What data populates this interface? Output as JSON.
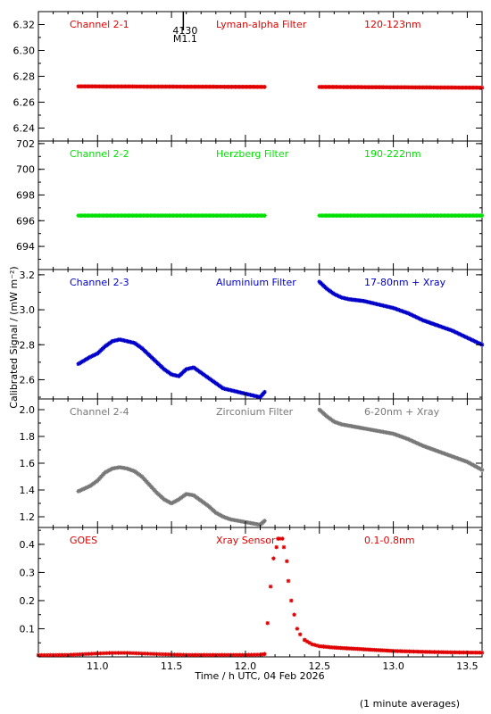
{
  "footer_note": "(1 minute averages)",
  "chart_data": {
    "type": "scatter",
    "xlabel": "Time / h UTC, 04 Feb 2026",
    "ylabel": "Calibrated Signal / (mW m⁻²)",
    "xlim": [
      10.6,
      13.6
    ],
    "x_ticks": [
      "11.0",
      "11.5",
      "12.0",
      "12.5",
      "13.0",
      "13.5"
    ],
    "x_tick_values": [
      11.0,
      11.5,
      12.0,
      12.5,
      13.0,
      13.5
    ],
    "marker": "*",
    "event_marker": {
      "x": 11.58,
      "labels": [
        "4130",
        "M1.1"
      ]
    },
    "panels": [
      {
        "channel": "Channel 2-1",
        "filter": "Lyman-alpha Filter",
        "band": "120-123nm",
        "color": "#e00000",
        "ylim": [
          6.23,
          6.33
        ],
        "y_ticks": [
          "6.24",
          "6.26",
          "6.28",
          "6.30",
          "6.32"
        ],
        "y_tick_values": [
          6.24,
          6.26,
          6.28,
          6.3,
          6.32
        ],
        "segments": [
          {
            "x": [
              10.87,
              12.13
            ],
            "y": [
              6.2722,
              6.2718
            ]
          },
          {
            "x": [
              12.5,
              13.6
            ],
            "y": [
              6.2718,
              6.2712
            ]
          }
        ]
      },
      {
        "channel": "Channel 2-2",
        "filter": "Herzberg Filter",
        "band": "190-222nm",
        "color": "#00e000",
        "ylim": [
          692.2,
          702.2
        ],
        "y_ticks": [
          "694",
          "696",
          "698",
          "700",
          "702"
        ],
        "y_tick_values": [
          694,
          696,
          698,
          700,
          702
        ],
        "segments": [
          {
            "x": [
              10.87,
              12.13
            ],
            "y": [
              696.4,
              696.4
            ]
          },
          {
            "x": [
              12.5,
              13.6
            ],
            "y": [
              696.4,
              696.4
            ]
          }
        ]
      },
      {
        "channel": "Channel 2-3",
        "filter": "Aluminium Filter",
        "band": "17-80nm + Xray",
        "color": "#0000c8",
        "ylim": [
          2.49,
          3.23
        ],
        "y_ticks": [
          "2.6",
          "2.8",
          "3.0",
          "3.2"
        ],
        "y_tick_values": [
          2.6,
          2.8,
          3.0,
          3.2
        ],
        "segments": [
          {
            "x": [
              10.87,
              10.95,
              11.0,
              11.05,
              11.1,
              11.15,
              11.2,
              11.25,
              11.3,
              11.35,
              11.4,
              11.45,
              11.5,
              11.55,
              11.6,
              11.65,
              11.7,
              11.75,
              11.8,
              11.85,
              11.9,
              11.95,
              12.0,
              12.05,
              12.1,
              12.13
            ],
            "y": [
              2.69,
              2.73,
              2.75,
              2.79,
              2.82,
              2.83,
              2.82,
              2.81,
              2.78,
              2.74,
              2.7,
              2.66,
              2.63,
              2.62,
              2.66,
              2.67,
              2.64,
              2.61,
              2.58,
              2.55,
              2.54,
              2.53,
              2.52,
              2.51,
              2.5,
              2.53
            ]
          },
          {
            "x": [
              12.5,
              12.55,
              12.6,
              12.65,
              12.7,
              12.8,
              12.9,
              13.0,
              13.1,
              13.2,
              13.3,
              13.4,
              13.5,
              13.6
            ],
            "y": [
              3.16,
              3.12,
              3.09,
              3.07,
              3.06,
              3.05,
              3.03,
              3.01,
              2.98,
              2.94,
              2.91,
              2.88,
              2.84,
              2.8
            ]
          }
        ]
      },
      {
        "channel": "Channel 2-4",
        "filter": "Zirconium Filter",
        "band": "6-20nm + Xray",
        "color": "#787878",
        "ylim": [
          1.12,
          2.08
        ],
        "y_ticks": [
          "1.2",
          "1.4",
          "1.6",
          "1.8",
          "2.0"
        ],
        "y_tick_values": [
          1.2,
          1.4,
          1.6,
          1.8,
          2.0
        ],
        "segments": [
          {
            "x": [
              10.87,
              10.95,
              11.0,
              11.05,
              11.1,
              11.15,
              11.2,
              11.25,
              11.3,
              11.35,
              11.4,
              11.45,
              11.5,
              11.55,
              11.6,
              11.65,
              11.7,
              11.75,
              11.8,
              11.85,
              11.9,
              11.95,
              12.0,
              12.05,
              12.1,
              12.13
            ],
            "y": [
              1.39,
              1.43,
              1.47,
              1.53,
              1.56,
              1.57,
              1.56,
              1.54,
              1.5,
              1.44,
              1.38,
              1.33,
              1.3,
              1.33,
              1.37,
              1.36,
              1.32,
              1.28,
              1.23,
              1.2,
              1.18,
              1.17,
              1.16,
              1.15,
              1.14,
              1.17
            ]
          },
          {
            "x": [
              12.5,
              12.55,
              12.6,
              12.65,
              12.7,
              12.8,
              12.9,
              13.0,
              13.1,
              13.2,
              13.3,
              13.4,
              13.5,
              13.6
            ],
            "y": [
              2.0,
              1.95,
              1.91,
              1.89,
              1.88,
              1.86,
              1.84,
              1.82,
              1.78,
              1.73,
              1.69,
              1.65,
              1.61,
              1.55
            ]
          }
        ]
      },
      {
        "channel": "GOES",
        "filter": "Xray Sensor",
        "band": "0.1-0.8nm",
        "color": "#e00000",
        "ylim": [
          0.0,
          0.46
        ],
        "y_ticks": [
          "0.1",
          "0.2",
          "0.3",
          "0.4"
        ],
        "y_tick_values": [
          0.1,
          0.2,
          0.3,
          0.4
        ],
        "segments": [
          {
            "x": [
              10.6,
              10.8,
              11.0,
              11.1,
              11.2,
              11.4,
              11.6,
              11.8,
              12.0,
              12.1,
              12.13
            ],
            "y": [
              0.006,
              0.007,
              0.012,
              0.014,
              0.014,
              0.01,
              0.007,
              0.007,
              0.007,
              0.008,
              0.01
            ]
          }
        ],
        "points": {
          "x": [
            12.15,
            12.17,
            12.19,
            12.21,
            12.22,
            12.23,
            12.25,
            12.26,
            12.28,
            12.29,
            12.31,
            12.33,
            12.35,
            12.37,
            12.4
          ],
          "y": [
            0.12,
            0.25,
            0.35,
            0.39,
            0.42,
            0.42,
            0.42,
            0.39,
            0.34,
            0.27,
            0.2,
            0.15,
            0.1,
            0.08,
            0.06
          ]
        },
        "tail": {
          "x": [
            12.4,
            12.45,
            12.5,
            12.6,
            12.7,
            12.8,
            12.9,
            13.0,
            13.2,
            13.4,
            13.6
          ],
          "y": [
            0.06,
            0.045,
            0.038,
            0.033,
            0.03,
            0.027,
            0.024,
            0.021,
            0.018,
            0.016,
            0.015
          ]
        }
      }
    ]
  }
}
